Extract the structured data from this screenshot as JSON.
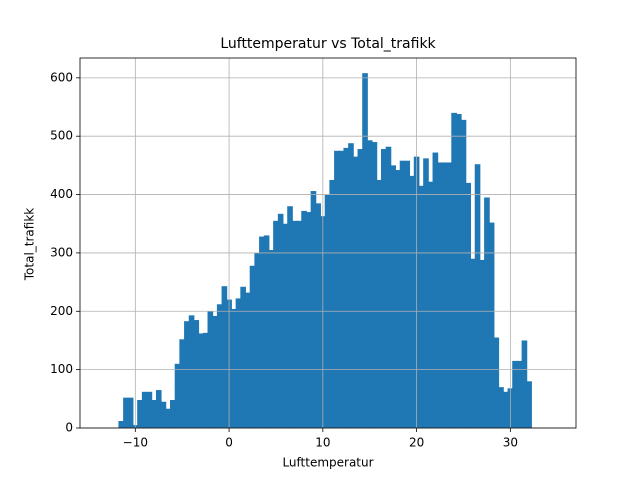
{
  "chart_data": {
    "type": "bar",
    "title": "Lufttemperatur vs Total_trafikk",
    "x_label": "Lufttemperatur",
    "y_label": "Total_trafikk",
    "x": [
      -11.5,
      -11,
      -10.5,
      -10,
      -9.5,
      -9,
      -8.5,
      -8,
      -7.5,
      -7,
      -6.5,
      -6,
      -5.5,
      -5,
      -4.5,
      -4,
      -3.5,
      -3,
      -2.5,
      -2,
      -1.5,
      -1,
      -0.5,
      0,
      0.5,
      1,
      1.5,
      2,
      2.5,
      3,
      3.5,
      4,
      4.5,
      5,
      5.5,
      6,
      6.5,
      7,
      7.5,
      8,
      8.5,
      9,
      9.5,
      10,
      10.5,
      11,
      11.5,
      12,
      12.5,
      13,
      13.5,
      14,
      14.5,
      15,
      15.5,
      16,
      16.5,
      17,
      17.5,
      18,
      18.5,
      19,
      19.5,
      20,
      20.5,
      21,
      21.5,
      22,
      22.5,
      23,
      23.5,
      24,
      24.5,
      25,
      25.5,
      26,
      26.5,
      27,
      27.5,
      28,
      28.5,
      29,
      29.5,
      30,
      30.5,
      31,
      31.5,
      32
    ],
    "values": [
      12,
      52,
      52,
      5,
      48,
      62,
      62,
      48,
      65,
      45,
      33,
      48,
      110,
      152,
      183,
      193,
      185,
      162,
      163,
      200,
      192,
      212,
      243,
      220,
      204,
      222,
      242,
      232,
      278,
      300,
      328,
      330,
      305,
      355,
      367,
      350,
      380,
      355,
      355,
      372,
      370,
      406,
      385,
      363,
      400,
      425,
      475,
      475,
      480,
      488,
      465,
      478,
      608,
      493,
      490,
      425,
      478,
      482,
      450,
      442,
      458,
      458,
      432,
      465,
      415,
      462,
      422,
      472,
      455,
      455,
      455,
      540,
      538,
      528,
      420,
      290,
      452,
      288,
      395,
      352,
      155,
      70,
      62,
      68,
      115,
      115,
      150,
      80
    ],
    "color": "#1f77b4",
    "xlim": [
      -15.9,
      37.0
    ],
    "ylim": [
      0,
      634
    ],
    "xticks": [
      {
        "value": -10,
        "label": "−10"
      },
      0,
      10,
      20,
      30
    ],
    "yticks": [
      0,
      100,
      200,
      300,
      400,
      500,
      600
    ],
    "grid": true
  }
}
